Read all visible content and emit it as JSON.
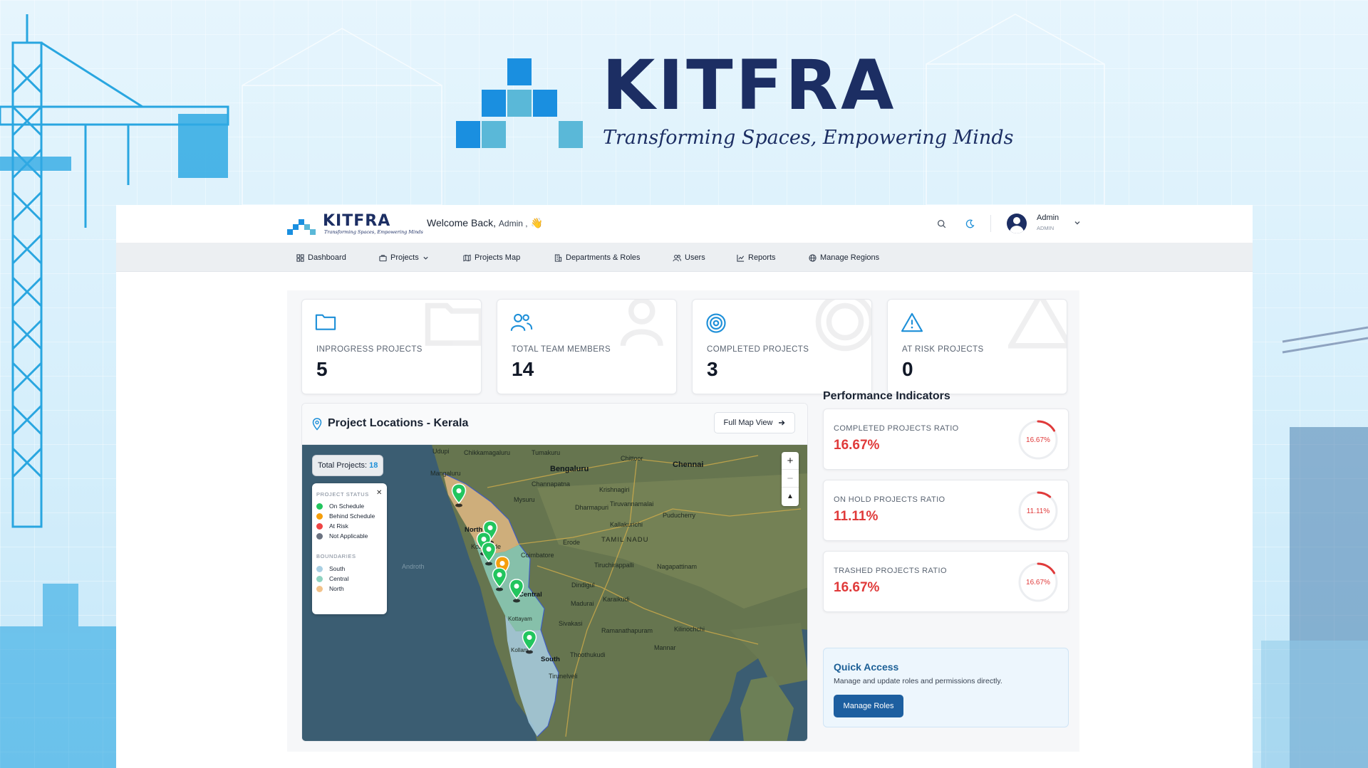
{
  "brand": {
    "name": "KITFRA",
    "tagline": "Transforming Spaces, Empowering Minds"
  },
  "header": {
    "welcome": "Welcome Back,",
    "welcome_name": "Admin ,",
    "welcome_emoji": "👋",
    "search_icon": "search-icon",
    "theme_icon": "moon-icon",
    "user_name": "Admin",
    "user_role": "ADMIN"
  },
  "nav": {
    "items": [
      {
        "label": "Dashboard",
        "icon": "grid-icon"
      },
      {
        "label": "Projects",
        "icon": "briefcase-icon"
      },
      {
        "label": "Projects Map",
        "icon": "map-icon"
      },
      {
        "label": "Departments & Roles",
        "icon": "building-icon"
      },
      {
        "label": "Users",
        "icon": "users-icon"
      },
      {
        "label": "Reports",
        "icon": "chart-icon"
      },
      {
        "label": "Manage Regions",
        "icon": "globe-icon"
      }
    ]
  },
  "stats": [
    {
      "label": "INPROGRESS PROJECTS",
      "value": "5",
      "icon": "folder-icon"
    },
    {
      "label": "TOTAL TEAM MEMBERS",
      "value": "14",
      "icon": "users-icon"
    },
    {
      "label": "COMPLETED PROJECTS",
      "value": "3",
      "icon": "target-icon"
    },
    {
      "label": "AT RISK PROJECTS",
      "value": "0",
      "icon": "warning-icon"
    }
  ],
  "map": {
    "title": "Project Locations - Kerala",
    "full_map_label": "Full Map View",
    "total_label": "Total Projects:",
    "total_value": "18",
    "status_heading": "PROJECT STATUS",
    "statuses": [
      {
        "label": "On Schedule",
        "color": "#22c55e"
      },
      {
        "label": "Behind Schedule",
        "color": "#f59e0b"
      },
      {
        "label": "At Risk",
        "color": "#ef4444"
      },
      {
        "label": "Not Applicable",
        "color": "#6b7280"
      }
    ],
    "boundaries_heading": "BOUNDARIES",
    "boundaries": [
      {
        "label": "South",
        "color": "#a9cfe3"
      },
      {
        "label": "Central",
        "color": "#8fd3c1"
      },
      {
        "label": "North",
        "color": "#f2c28a"
      }
    ],
    "zoom_in": "+",
    "zoom_out": "−",
    "compass": "▲",
    "places": {
      "udupi": "Udupi",
      "chikkamagaluru": "Chikkamagaluru",
      "tumakuru": "Tumakuru",
      "mangaluru": "Mangaluru",
      "bengaluru": "Bengaluru",
      "chittoor": "Chittoor",
      "chennai": "Chennai",
      "channapatna": "Channapatna",
      "krishnagiri": "Krishnagiri",
      "mysuru": "Mysuru",
      "tiruvannamalai": "Tiruvannamalai",
      "dharmapuri": "Dharmapuri",
      "kallakurichi": "Kallakurichi",
      "puducherry": "Puducherry",
      "tamil_nadu": "TAMIL NADU",
      "erode": "Erode",
      "kozhikode": "Kozhikode",
      "coimbatore": "Coimbatore",
      "tiruchirappalli": "Tiruchirappalli",
      "nagapattinam": "Nagapattinam",
      "dindigul": "Dindigul",
      "karaikudi": "Karaikudi",
      "madurai": "Madurai",
      "sivakasi": "Sivakasi",
      "ramanathapuram": "Ramanathapuram",
      "kilinochchi": "Kilinochchi",
      "mannar": "Mannar",
      "thoothukudi": "Thoothukudi",
      "tirunelveli": "Tirunelveli",
      "androth": "Androth",
      "north": "North",
      "central": "Central",
      "south": "South",
      "kollam": "Kollam",
      "kottayam": "Kottayam"
    }
  },
  "performance": {
    "title": "Performance Indicators",
    "items": [
      {
        "label": "COMPLETED PROJECTS RATIO",
        "value": "16.67%",
        "ring": "16.67%",
        "fraction": 0.1667
      },
      {
        "label": "ON HOLD PROJECTS RATIO",
        "value": "11.11%",
        "ring": "11.11%",
        "fraction": 0.1111
      },
      {
        "label": "TRASHED PROJECTS RATIO",
        "value": "16.67%",
        "ring": "16.67%",
        "fraction": 0.1667
      }
    ]
  },
  "quick_access": {
    "title": "Quick Access",
    "description": "Manage and update roles and permissions directly.",
    "button": "Manage Roles"
  }
}
